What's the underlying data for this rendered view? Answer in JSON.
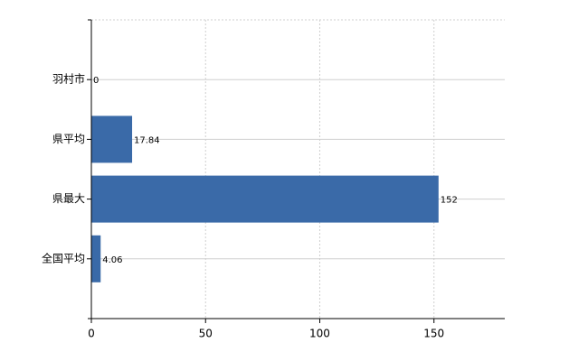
{
  "chart_data": {
    "type": "hbar",
    "categories": [
      "羽村市",
      "県平均",
      "県最大",
      "全国平均"
    ],
    "values": [
      0,
      17.84,
      152,
      4.06
    ],
    "color": "#3a6aa8",
    "xlim": [
      0,
      181
    ],
    "xticks": [
      0,
      50,
      100,
      150
    ],
    "grid": true
  }
}
